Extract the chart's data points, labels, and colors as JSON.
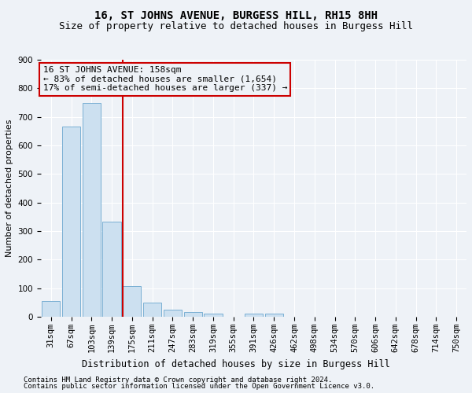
{
  "title": "16, ST JOHNS AVENUE, BURGESS HILL, RH15 8HH",
  "subtitle": "Size of property relative to detached houses in Burgess Hill",
  "xlabel": "Distribution of detached houses by size in Burgess Hill",
  "ylabel": "Number of detached properties",
  "footer_line1": "Contains HM Land Registry data © Crown copyright and database right 2024.",
  "footer_line2": "Contains public sector information licensed under the Open Government Licence v3.0.",
  "categories": [
    "31sqm",
    "67sqm",
    "103sqm",
    "139sqm",
    "175sqm",
    "211sqm",
    "247sqm",
    "283sqm",
    "319sqm",
    "355sqm",
    "391sqm",
    "426sqm",
    "462sqm",
    "498sqm",
    "534sqm",
    "570sqm",
    "606sqm",
    "642sqm",
    "678sqm",
    "714sqm",
    "750sqm"
  ],
  "values": [
    55,
    665,
    748,
    332,
    107,
    50,
    24,
    15,
    10,
    0,
    10,
    10,
    0,
    0,
    0,
    0,
    0,
    0,
    0,
    0,
    0
  ],
  "bar_color": "#cce0f0",
  "bar_edgecolor": "#7ab0d4",
  "vline_color": "#cc0000",
  "annotation_box_color": "#cc0000",
  "annotation_text": "16 ST JOHNS AVENUE: 158sqm\n← 83% of detached houses are smaller (1,654)\n17% of semi-detached houses are larger (337) →",
  "ylim": [
    0,
    900
  ],
  "yticks": [
    0,
    100,
    200,
    300,
    400,
    500,
    600,
    700,
    800,
    900
  ],
  "background_color": "#eef2f7",
  "grid_color": "#ffffff",
  "title_fontsize": 10,
  "subtitle_fontsize": 9,
  "xlabel_fontsize": 8.5,
  "ylabel_fontsize": 8,
  "tick_fontsize": 7.5,
  "annotation_fontsize": 8,
  "footer_fontsize": 6.5
}
